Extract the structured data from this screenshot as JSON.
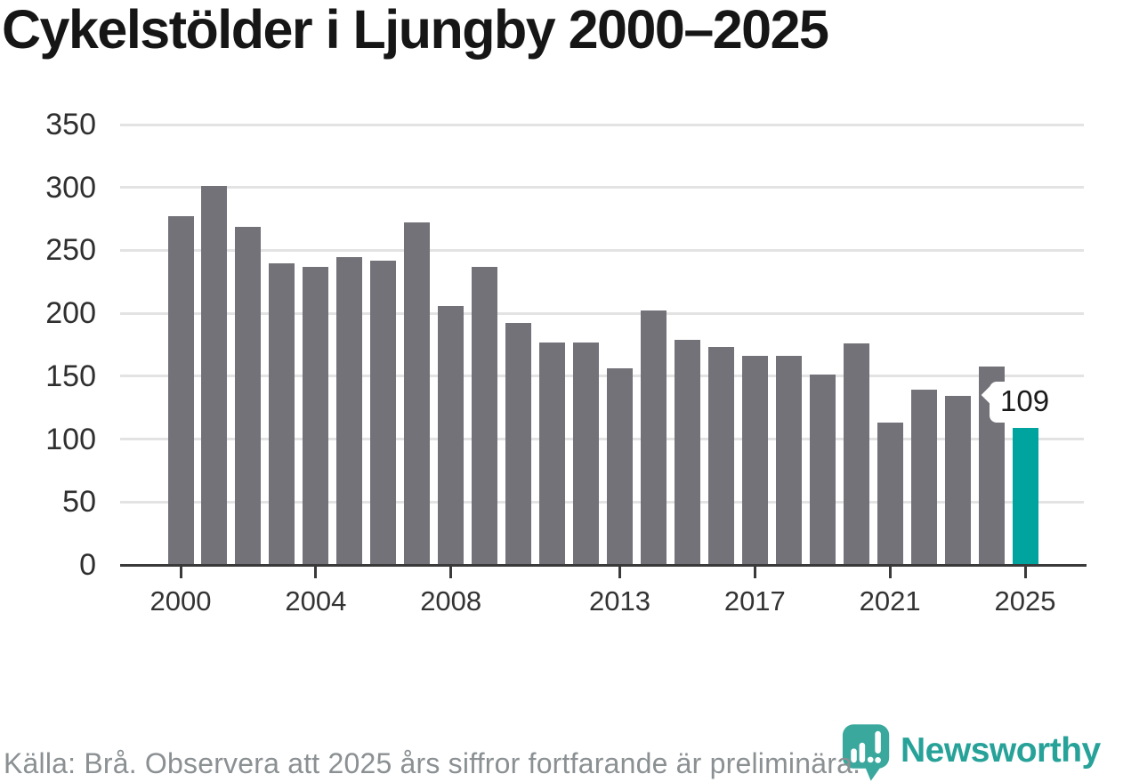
{
  "title": "Cykelstölder i Ljungby 2000–2025",
  "chart_data": {
    "type": "bar",
    "categories": [
      2000,
      2001,
      2002,
      2003,
      2004,
      2005,
      2006,
      2007,
      2008,
      2009,
      2010,
      2011,
      2012,
      2013,
      2014,
      2015,
      2016,
      2017,
      2018,
      2019,
      2020,
      2021,
      2022,
      2023,
      2024,
      2025
    ],
    "values": [
      277,
      301,
      269,
      240,
      237,
      245,
      242,
      272,
      206,
      237,
      192,
      177,
      177,
      156,
      202,
      179,
      173,
      166,
      166,
      151,
      176,
      113,
      139,
      134,
      158,
      109
    ],
    "title": "Cykelstölder i Ljungby 2000–2025",
    "xlabel": "",
    "ylabel": "",
    "ylim": [
      0,
      350
    ],
    "yticks": [
      0,
      50,
      100,
      150,
      200,
      250,
      300,
      350
    ],
    "xtick_years": [
      2000,
      2004,
      2008,
      2013,
      2017,
      2021,
      2025
    ],
    "grid": "horizontal",
    "legend": "none",
    "highlight_year": 2025,
    "annotation": {
      "year": 2025,
      "label": "109"
    },
    "colors": {
      "bar": "#737278",
      "highlight": "#00a49e"
    }
  },
  "footer": {
    "source": "Källa: Brå. Observera att 2025 års siffror fortfarande är preliminära."
  },
  "branding": {
    "name": "Newsworthy",
    "icon": "newsworthy-speech-bubble-bar-chart-icon",
    "color": "#27a299"
  }
}
